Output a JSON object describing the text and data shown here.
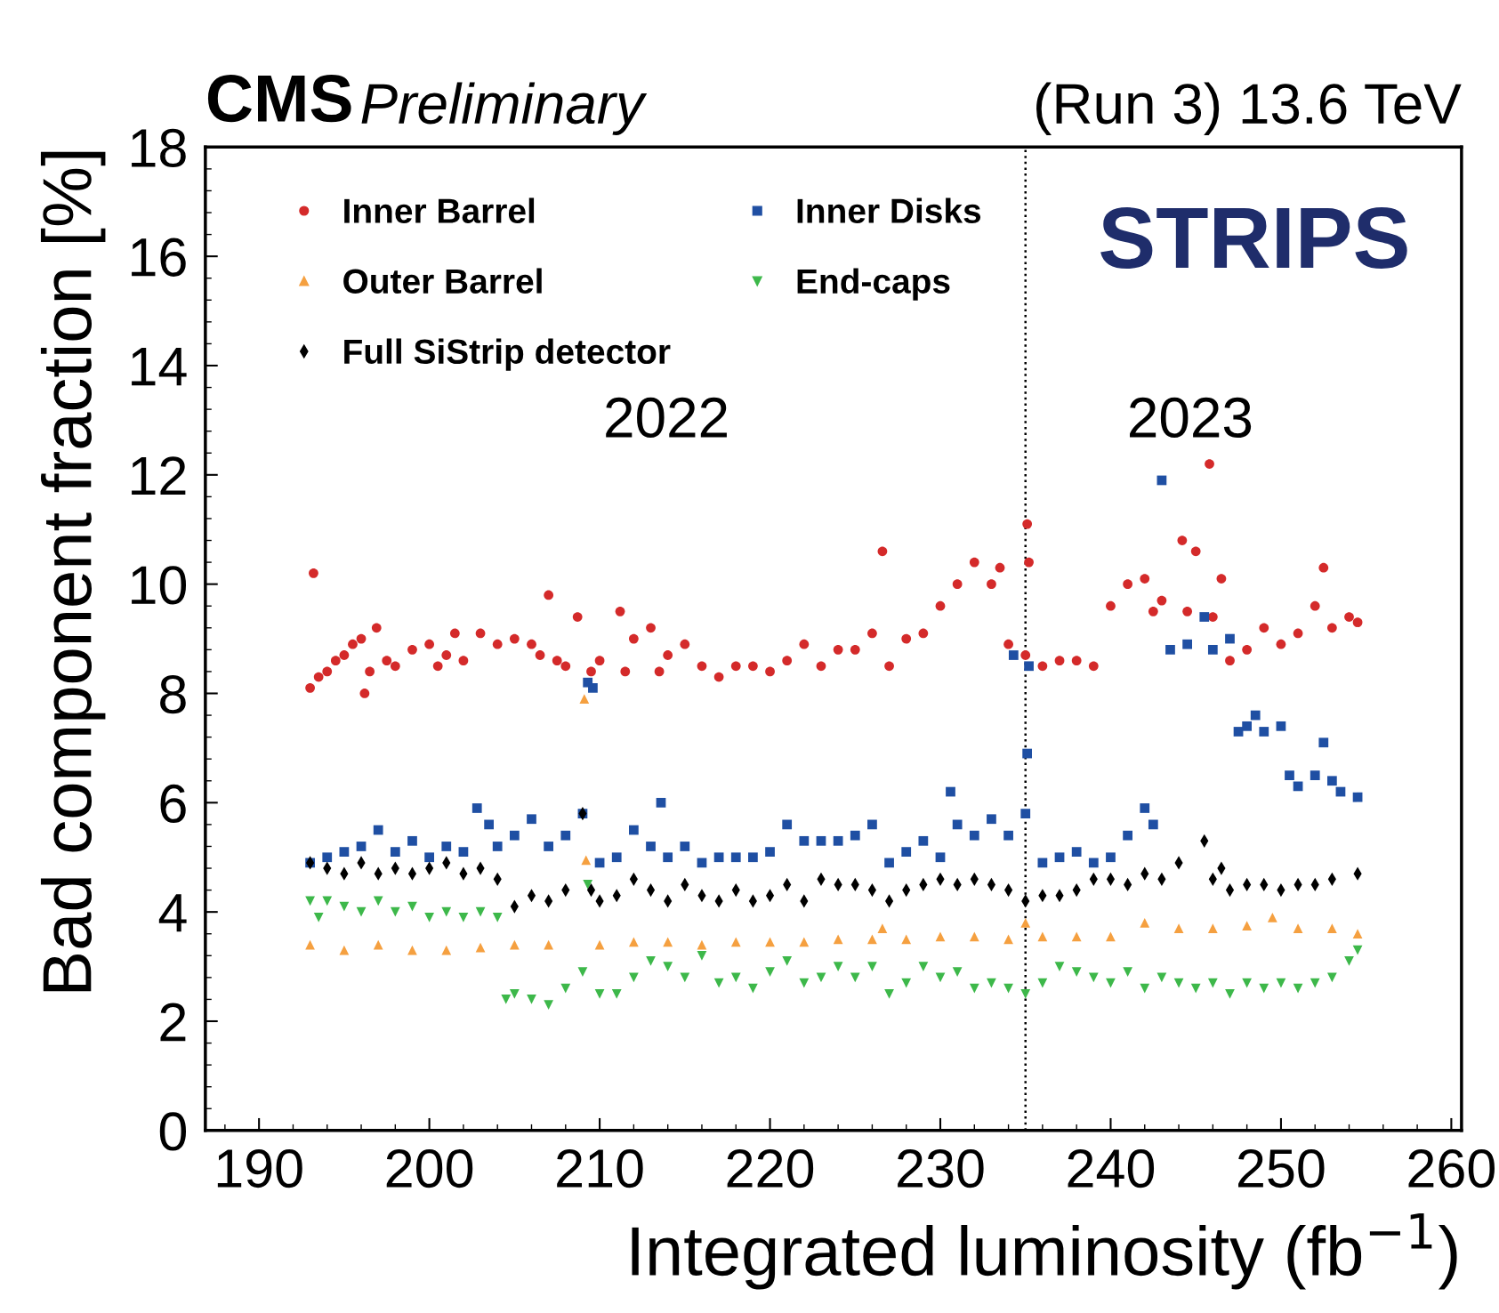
{
  "chart_data": {
    "type": "scatter",
    "title": "CMS",
    "subtitle": "Preliminary",
    "xlabel": "Integrated luminosity (fb$^{−1}$)",
    "ylabel": "Bad component fraction [%]",
    "annotations": [
      "(Run 3) 13.6 TeV",
      "STRIPS",
      "2022",
      "2023"
    ],
    "xlim": [
      186.85,
      260.6
    ],
    "ylim": [
      0,
      18
    ],
    "xticks": [
      190,
      200,
      210,
      220,
      230,
      240,
      250,
      260
    ],
    "yticks": [
      0,
      2,
      4,
      6,
      8,
      10,
      12,
      14,
      16,
      18
    ],
    "grid": false,
    "legend": "top left",
    "ref_lines": [
      {
        "axis": "x",
        "value": 235,
        "color": "#000000",
        "line_style": "dotted"
      }
    ],
    "series": [
      {
        "name": "Inner Barrel",
        "color": "#d42a2a",
        "marker": "circle",
        "x": [
          193,
          193.2,
          193.5,
          194,
          194.5,
          195,
          195.5,
          196,
          196.2,
          196.5,
          196.9,
          197.5,
          198,
          199,
          200,
          200.5,
          201,
          201.5,
          202,
          203,
          204,
          205,
          206,
          206.5,
          207,
          207.5,
          208,
          208.7,
          209.5,
          210,
          211.2,
          211.5,
          212,
          213,
          213.5,
          214,
          215,
          216,
          217,
          218,
          219,
          220,
          221,
          222,
          223,
          224,
          225,
          226,
          226.6,
          227,
          228,
          229,
          230,
          231,
          232,
          233,
          233.5,
          234,
          235,
          235.1,
          235.2,
          236,
          237,
          238,
          239,
          240,
          241,
          242,
          242.5,
          243,
          244.2,
          244.5,
          245,
          245.8,
          246,
          246.5,
          247,
          248,
          249,
          250,
          251,
          252,
          252.5,
          253,
          254,
          254.5
        ],
        "values": [
          8.1,
          10.2,
          8.3,
          8.4,
          8.6,
          8.7,
          8.9,
          9.0,
          8.0,
          8.4,
          9.2,
          8.6,
          8.5,
          8.8,
          8.9,
          8.5,
          8.7,
          9.1,
          8.6,
          9.1,
          8.9,
          9.0,
          8.9,
          8.7,
          9.8,
          8.6,
          8.5,
          9.4,
          8.4,
          8.6,
          9.5,
          8.4,
          9.0,
          9.2,
          8.4,
          8.7,
          8.9,
          8.5,
          8.3,
          8.5,
          8.5,
          8.4,
          8.6,
          8.9,
          8.5,
          8.8,
          8.8,
          9.1,
          10.6,
          8.5,
          9.0,
          9.1,
          9.6,
          10.0,
          10.4,
          10.0,
          10.3,
          8.9,
          8.7,
          11.1,
          10.4,
          8.5,
          8.6,
          8.6,
          8.5,
          9.6,
          10.0,
          10.1,
          9.5,
          9.7,
          10.8,
          9.5,
          10.6,
          12.2,
          9.4,
          10.1,
          8.6,
          8.8,
          9.2,
          8.9,
          9.1,
          9.6,
          10.3,
          9.2,
          9.4,
          9.3
        ]
      },
      {
        "name": "Inner Disks",
        "color": "#1f4fa3",
        "marker": "square",
        "x": [
          193,
          194,
          195,
          196,
          197,
          198,
          199,
          200,
          201,
          202,
          202.8,
          203.5,
          204,
          205,
          206,
          207,
          208,
          209,
          209.3,
          209.6,
          210,
          211,
          212,
          213,
          213.6,
          214,
          215,
          216,
          217,
          218,
          219,
          220,
          221,
          222,
          223,
          224,
          225,
          226,
          227,
          228,
          229,
          230,
          230.6,
          231,
          232,
          233,
          234,
          234.3,
          235,
          235.1,
          235.2,
          236,
          237,
          238,
          239,
          240,
          241,
          242,
          242.5,
          243,
          243.5,
          244.5,
          245.5,
          246,
          247,
          247.5,
          248,
          248.5,
          249,
          250,
          250.5,
          251,
          252,
          252.5,
          253,
          253.5,
          254.5
        ],
        "values": [
          4.9,
          5.0,
          5.1,
          5.2,
          5.5,
          5.1,
          5.3,
          5.0,
          5.2,
          5.1,
          5.9,
          5.6,
          5.2,
          5.4,
          5.7,
          5.2,
          5.4,
          5.8,
          8.2,
          8.1,
          4.9,
          5.0,
          5.5,
          5.2,
          6.0,
          5.0,
          5.2,
          4.9,
          5.0,
          5.0,
          5.0,
          5.1,
          5.6,
          5.3,
          5.3,
          5.3,
          5.4,
          5.6,
          4.9,
          5.1,
          5.3,
          5.0,
          6.2,
          5.6,
          5.4,
          5.7,
          5.4,
          8.7,
          5.8,
          6.9,
          8.5,
          4.9,
          5.0,
          5.1,
          4.9,
          5.0,
          5.4,
          5.9,
          5.6,
          11.9,
          8.8,
          8.9,
          9.4,
          8.8,
          9.0,
          7.3,
          7.4,
          7.6,
          7.3,
          7.4,
          6.5,
          6.3,
          6.5,
          7.1,
          6.4,
          6.2,
          6.1
        ]
      },
      {
        "name": "Outer Barrel",
        "color": "#f5a040",
        "marker": "triangle",
        "x": [
          193,
          195,
          197,
          199,
          201,
          203,
          205,
          207,
          209.1,
          209.2,
          210,
          212,
          214,
          216,
          218,
          220,
          222,
          224,
          226,
          226.6,
          228,
          230,
          232,
          234,
          235,
          236,
          238,
          240,
          242,
          244,
          246,
          248,
          249.5,
          251,
          253,
          254.5
        ],
        "values": [
          3.4,
          3.3,
          3.4,
          3.3,
          3.3,
          3.35,
          3.4,
          3.4,
          7.9,
          4.95,
          3.4,
          3.45,
          3.45,
          3.4,
          3.45,
          3.45,
          3.45,
          3.5,
          3.5,
          3.7,
          3.5,
          3.55,
          3.55,
          3.5,
          3.8,
          3.55,
          3.55,
          3.55,
          3.8,
          3.7,
          3.7,
          3.75,
          3.9,
          3.7,
          3.7,
          3.6
        ]
      },
      {
        "name": "End-caps",
        "color": "#3db84a",
        "marker": "triangle_down",
        "x": [
          193,
          193.5,
          194,
          195,
          196,
          197,
          198,
          199,
          200,
          201,
          202,
          203,
          204,
          204.5,
          205,
          206,
          207,
          208,
          209,
          209.3,
          210,
          211,
          212,
          213,
          214,
          215,
          216,
          217,
          218,
          219,
          220,
          221,
          222,
          223,
          224,
          225,
          226,
          227,
          228,
          229,
          230,
          231,
          232,
          233,
          234,
          235,
          236,
          237,
          238,
          239,
          240,
          241,
          242,
          243,
          244,
          245,
          246,
          247,
          248,
          249,
          250,
          251,
          252,
          253,
          254,
          254.5
        ],
        "values": [
          4.2,
          3.9,
          4.2,
          4.1,
          4.0,
          4.2,
          4.0,
          4.1,
          3.9,
          4.0,
          3.9,
          4.0,
          3.9,
          2.4,
          2.5,
          2.4,
          2.3,
          2.6,
          2.9,
          4.5,
          2.5,
          2.5,
          2.8,
          3.1,
          3.0,
          2.8,
          3.2,
          2.7,
          2.8,
          2.6,
          2.9,
          3.1,
          2.7,
          2.8,
          3.0,
          2.8,
          3.0,
          2.5,
          2.7,
          3.0,
          2.8,
          2.9,
          2.6,
          2.7,
          2.6,
          2.5,
          2.7,
          3.0,
          2.9,
          2.8,
          2.7,
          2.9,
          2.6,
          2.8,
          2.7,
          2.6,
          2.7,
          2.5,
          2.7,
          2.6,
          2.7,
          2.6,
          2.7,
          2.8,
          3.1,
          3.3
        ]
      },
      {
        "name": "Full SiStrip detector",
        "color": "#000000",
        "marker": "diamond",
        "x": [
          193,
          194,
          195,
          196,
          197,
          198,
          199,
          200,
          201,
          202,
          203,
          204,
          205,
          206,
          207,
          208,
          209,
          209.5,
          210,
          211,
          212,
          213,
          214,
          215,
          216,
          217,
          218,
          219,
          220,
          221,
          222,
          223,
          224,
          225,
          226,
          227,
          228,
          229,
          230,
          231,
          232,
          233,
          234,
          235,
          236,
          237,
          238,
          239,
          240,
          241,
          242,
          243,
          244,
          245.5,
          246,
          246.5,
          247,
          248,
          249,
          250,
          251,
          252,
          253,
          254.5
        ],
        "values": [
          4.9,
          4.8,
          4.7,
          4.9,
          4.7,
          4.8,
          4.7,
          4.8,
          4.9,
          4.7,
          4.8,
          4.6,
          4.1,
          4.3,
          4.2,
          4.4,
          5.8,
          4.4,
          4.2,
          4.3,
          4.6,
          4.4,
          4.2,
          4.5,
          4.3,
          4.2,
          4.4,
          4.2,
          4.3,
          4.5,
          4.2,
          4.6,
          4.5,
          4.5,
          4.4,
          4.2,
          4.4,
          4.5,
          4.6,
          4.5,
          4.6,
          4.5,
          4.4,
          4.2,
          4.3,
          4.3,
          4.4,
          4.6,
          4.6,
          4.5,
          4.7,
          4.6,
          4.9,
          5.3,
          4.6,
          4.8,
          4.4,
          4.5,
          4.5,
          4.4,
          4.5,
          4.5,
          4.6,
          4.7
        ]
      }
    ]
  }
}
